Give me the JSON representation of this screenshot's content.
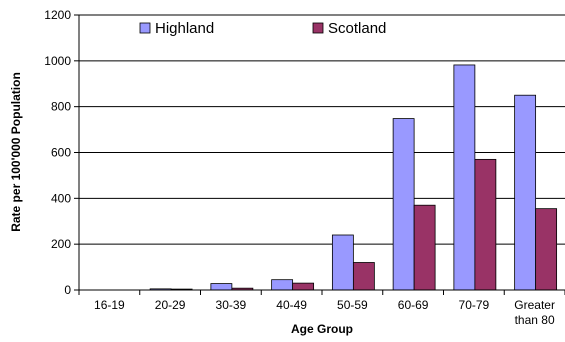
{
  "chart_data": {
    "type": "bar",
    "title": "",
    "xlabel": "Age Group",
    "ylabel": "Rate per 100'000 Population",
    "ylim": [
      0,
      1200
    ],
    "yticks": [
      0,
      200,
      400,
      600,
      800,
      1000,
      1200
    ],
    "grid": true,
    "legend_position": "top",
    "categories": [
      [
        "16-19"
      ],
      [
        "20-29"
      ],
      [
        "30-39"
      ],
      [
        "40-49"
      ],
      [
        "50-59"
      ],
      [
        "60-69"
      ],
      [
        "70-79"
      ],
      [
        "Greater",
        "than 80"
      ]
    ],
    "series": [
      {
        "name": "Highland",
        "color": "#9999ff",
        "values": [
          0,
          5,
          28,
          45,
          240,
          748,
          982,
          850
        ]
      },
      {
        "name": "Scotland",
        "color": "#993366",
        "values": [
          0,
          4,
          8,
          30,
          120,
          370,
          570,
          355
        ]
      }
    ]
  }
}
